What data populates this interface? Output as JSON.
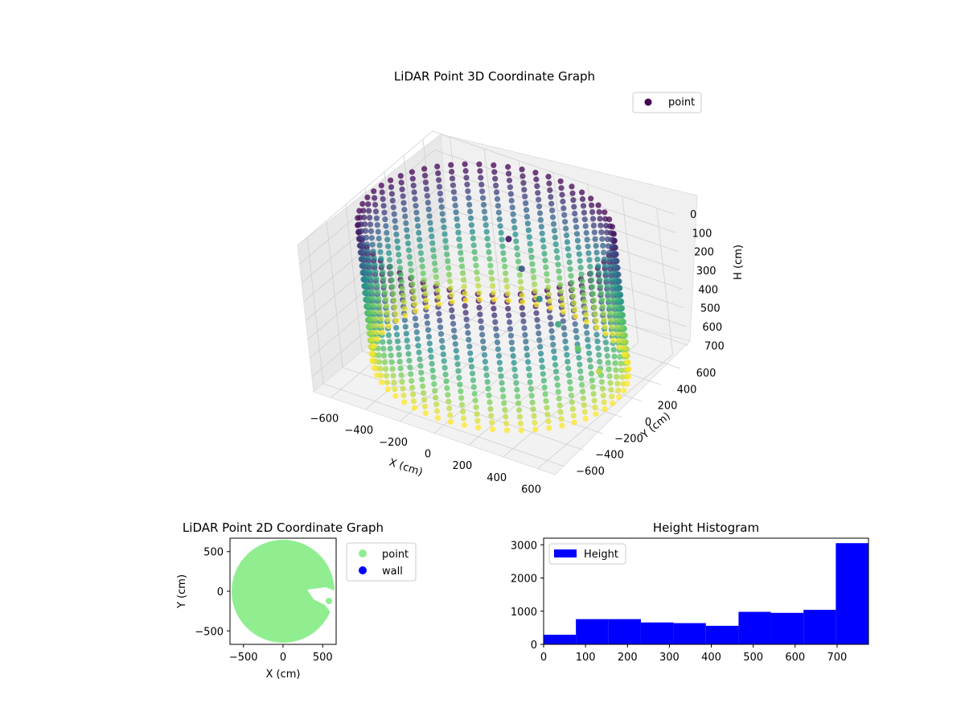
{
  "colors": {
    "point_2d": "#90ee90",
    "wall_2d": "#0000ff",
    "histogram": "#0000ff",
    "viridis": [
      "#440154",
      "#3b528b",
      "#21918c",
      "#5ec962",
      "#fde725"
    ]
  },
  "chart_data": [
    {
      "type": "scatter3d",
      "title": "LiDAR Point 3D Coordinate Graph",
      "xlabel": "X (cm)",
      "ylabel": "Y (cm)",
      "zlabel": "H (cm)",
      "legend": [
        "point"
      ],
      "legend_position": "top-right",
      "x_ticks": [
        "−600",
        "−400",
        "−200",
        "0",
        "200",
        "400",
        "600"
      ],
      "y_ticks": [
        "−600",
        "−400",
        "−200",
        "0",
        "200",
        "400",
        "600"
      ],
      "z_ticks": [
        "0",
        "100",
        "200",
        "300",
        "400",
        "500",
        "600",
        "700"
      ],
      "xlim": [
        -700,
        700
      ],
      "ylim": [
        -700,
        700
      ],
      "zlim": [
        0,
        780
      ],
      "z_inverted": true,
      "grid": true,
      "colormap": "viridis",
      "cylinder": {
        "radius": 650,
        "h_min": 0,
        "h_max": 720
      },
      "interior_object": [
        {
          "x": 100,
          "y": 50,
          "h": 40
        },
        {
          "x": 160,
          "y": 50,
          "h": 180
        },
        {
          "x": 240,
          "y": 60,
          "h": 320
        },
        {
          "x": 330,
          "y": 70,
          "h": 430
        },
        {
          "x": 420,
          "y": 90,
          "h": 540
        },
        {
          "x": 520,
          "y": 110,
          "h": 640
        }
      ]
    },
    {
      "type": "scatter",
      "title": "LiDAR Point 2D Coordinate Graph",
      "xlabel": "X (cm)",
      "ylabel": "Y (cm)",
      "x_ticks": [
        "−500",
        "0",
        "500"
      ],
      "y_ticks": [
        "500",
        "0",
        "−500"
      ],
      "xlim": [
        -670,
        670
      ],
      "ylim": [
        -670,
        670
      ],
      "legend": [
        "point",
        "wall"
      ],
      "legend_position": "outside-right",
      "series": [
        {
          "name": "point",
          "shape": "filled disc with notch",
          "radius": 650
        },
        {
          "name": "wall",
          "values": []
        }
      ]
    },
    {
      "type": "bar",
      "title": "Height Histogram",
      "legend": [
        "Height"
      ],
      "legend_position": "top-left",
      "xlim": [
        0,
        775
      ],
      "ylim": [
        0,
        3200
      ],
      "x_ticks": [
        "0",
        "100",
        "200",
        "300",
        "400",
        "500",
        "600",
        "700"
      ],
      "y_ticks": [
        "0",
        "1000",
        "2000",
        "3000"
      ],
      "bin_edges": [
        0,
        77,
        155,
        232,
        310,
        387,
        465,
        542,
        620,
        697,
        775
      ],
      "values": [
        290,
        760,
        760,
        660,
        640,
        560,
        980,
        950,
        1040,
        3050
      ]
    }
  ]
}
